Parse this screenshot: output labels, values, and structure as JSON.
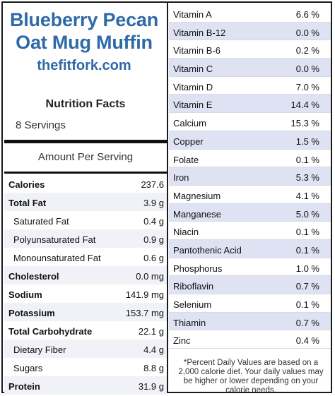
{
  "header": {
    "title_line1": "Blueberry Pecan",
    "title_line2": "Oat Mug Muffin",
    "site": "thefitfork.com"
  },
  "nutrition": {
    "title": "Nutrition Facts",
    "servings": "8 Servings",
    "amount_per_serving": "Amount Per Serving",
    "rows": [
      {
        "label": "Calories",
        "value": "237.6",
        "bold": true
      },
      {
        "label": "Total Fat",
        "value": "3.9 g",
        "bold": true
      },
      {
        "label": "Saturated Fat",
        "value": "0.4 g",
        "bold": false
      },
      {
        "label": "Polyunsaturated Fat",
        "value": "0.9 g",
        "bold": false
      },
      {
        "label": "Monounsaturated Fat",
        "value": "0.6 g",
        "bold": false
      },
      {
        "label": "Cholesterol",
        "value": "0.0 mg",
        "bold": true
      },
      {
        "label": "Sodium",
        "value": "141.9 mg",
        "bold": true
      },
      {
        "label": "Potassium",
        "value": "153.7 mg",
        "bold": true
      },
      {
        "label": "Total Carbohydrate",
        "value": "22.1 g",
        "bold": true
      },
      {
        "label": "Dietary Fiber",
        "value": "4.4 g",
        "bold": false
      },
      {
        "label": "Sugars",
        "value": "8.8 g",
        "bold": false
      },
      {
        "label": "Protein",
        "value": "31.9 g",
        "bold": true
      }
    ]
  },
  "vitamins": {
    "rows": [
      {
        "label": "Vitamin A",
        "value": "6.6 %"
      },
      {
        "label": "Vitamin B-12",
        "value": "0.0 %"
      },
      {
        "label": "Vitamin B-6",
        "value": "0.2 %"
      },
      {
        "label": "Vitamin C",
        "value": "0.0 %"
      },
      {
        "label": "Vitamin D",
        "value": "7.0 %"
      },
      {
        "label": "Vitamin E",
        "value": "14.4 %"
      },
      {
        "label": "Calcium",
        "value": "15.3 %"
      },
      {
        "label": "Copper",
        "value": "1.5 %"
      },
      {
        "label": "Folate",
        "value": "0.1 %"
      },
      {
        "label": "Iron",
        "value": "5.3 %"
      },
      {
        "label": "Magnesium",
        "value": "4.1 %"
      },
      {
        "label": "Manganese",
        "value": "5.0 %"
      },
      {
        "label": "Niacin",
        "value": "0.1 %"
      },
      {
        "label": "Pantothenic Acid",
        "value": "0.1 %"
      },
      {
        "label": "Phosphorus",
        "value": "1.0 %"
      },
      {
        "label": "Riboflavin",
        "value": "0.7 %"
      },
      {
        "label": "Selenium",
        "value": "0.1 %"
      },
      {
        "label": "Thiamin",
        "value": "0.7 %"
      },
      {
        "label": "Zinc",
        "value": "0.4 %"
      }
    ],
    "footnote": "*Percent Daily Values are based on a 2,000 calorie diet. Your daily values may be higher or lower depending on your calorie needs."
  }
}
